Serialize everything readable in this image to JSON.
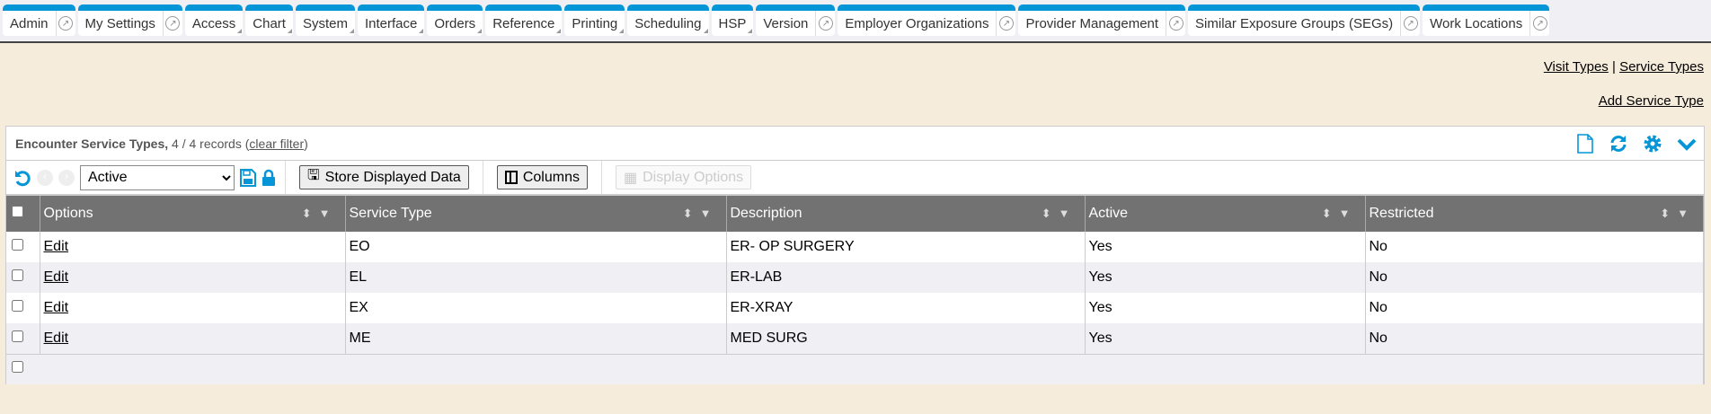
{
  "nav": {
    "tabs": [
      {
        "label": "Admin",
        "dropdown": false,
        "external": true
      },
      {
        "label": "My Settings",
        "dropdown": false,
        "external": true
      },
      {
        "label": "Access",
        "dropdown": true,
        "external": false
      },
      {
        "label": "Chart",
        "dropdown": true,
        "external": false
      },
      {
        "label": "System",
        "dropdown": true,
        "external": false
      },
      {
        "label": "Interface",
        "dropdown": true,
        "external": false
      },
      {
        "label": "Orders",
        "dropdown": true,
        "external": false
      },
      {
        "label": "Reference",
        "dropdown": true,
        "external": false
      },
      {
        "label": "Printing",
        "dropdown": true,
        "external": false
      },
      {
        "label": "Scheduling",
        "dropdown": true,
        "external": false
      },
      {
        "label": "HSP",
        "dropdown": true,
        "external": false
      },
      {
        "label": "Version",
        "dropdown": false,
        "external": true
      },
      {
        "label": "Employer Organizations",
        "dropdown": false,
        "external": true
      },
      {
        "label": "Provider Management",
        "dropdown": false,
        "external": true
      },
      {
        "label": "Similar Exposure Groups (SEGs)",
        "dropdown": false,
        "external": true
      },
      {
        "label": "Work Locations",
        "dropdown": false,
        "external": true
      }
    ]
  },
  "links": {
    "visit_types": "Visit Types",
    "separator": "|",
    "service_types": "Service Types",
    "add_service_type": "Add Service Type"
  },
  "panel": {
    "title": "Encounter Service Types,",
    "count": "4 / 4 records",
    "clear_open": "(",
    "clear_filter": "clear filter",
    "clear_close": ")"
  },
  "toolbar": {
    "filter_value": "Active",
    "store_label": "Store Displayed Data",
    "columns_label": "Columns",
    "display_options_label": "Display Options"
  },
  "accent": "#0696d7",
  "table": {
    "headers": [
      "Options",
      "Service Type",
      "Description",
      "Active",
      "Restricted"
    ],
    "rows": [
      {
        "options": "Edit",
        "service_type": "EO",
        "description": "ER- OP SURGERY",
        "active": "Yes",
        "restricted": "No"
      },
      {
        "options": "Edit",
        "service_type": "EL",
        "description": "ER-LAB",
        "active": "Yes",
        "restricted": "No"
      },
      {
        "options": "Edit",
        "service_type": "EX",
        "description": "ER-XRAY",
        "active": "Yes",
        "restricted": "No"
      },
      {
        "options": "Edit",
        "service_type": "ME",
        "description": "MED SURG",
        "active": "Yes",
        "restricted": "No"
      }
    ]
  }
}
